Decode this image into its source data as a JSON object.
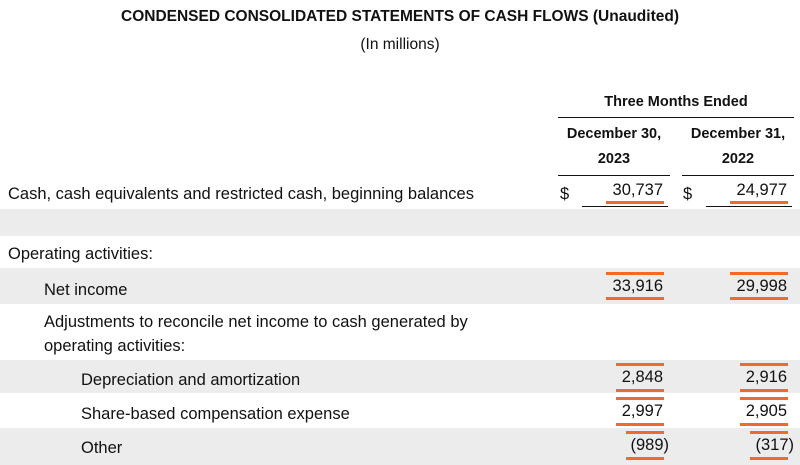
{
  "statement": {
    "title": "CONDENSED CONSOLIDATED STATEMENTS OF CASH FLOWS (Unaudited)",
    "subtitle": "(In millions)"
  },
  "columns": {
    "period_header": "Three Months Ended",
    "col1_line1": "December 30,",
    "col1_line2": "2023",
    "col2_line1": "December 31,",
    "col2_line2": "2022"
  },
  "currency_symbol": "$",
  "rows": [
    {
      "label": "Cash, cash equivalents and restricted cash, beginning balances",
      "v2023": "30,737",
      "v2022": "24,977"
    },
    {
      "label": "Operating activities:"
    },
    {
      "label": "Net income",
      "v2023": "33,916",
      "v2022": "29,998"
    },
    {
      "label_line1": "Adjustments to reconcile net income to cash generated by",
      "label_line2": "operating activities:"
    },
    {
      "label": "Depreciation and amortization",
      "v2023": "2,848",
      "v2022": "2,916"
    },
    {
      "label": "Share-based compensation expense",
      "v2023": "2,997",
      "v2022": "2,905"
    },
    {
      "label": "Other",
      "v2023": "(989)",
      "v2022": "(317)"
    }
  ],
  "colors": {
    "highlight": "#f26a2a",
    "band": "#ececec"
  }
}
